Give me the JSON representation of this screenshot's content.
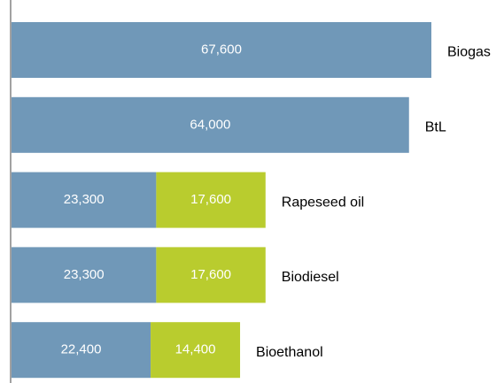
{
  "chart_data": {
    "type": "stacked-barh",
    "categories": [
      "Biogas",
      "BtL",
      "Rapeseed oil",
      "Biodiesel",
      "Bioethanol"
    ],
    "series": [
      {
        "color": "#7098b8",
        "values": [
          67600,
          64000,
          23300,
          23300,
          22400
        ],
        "value_labels": [
          "67,600",
          "64,000",
          "23,300",
          "23,300",
          "22,400"
        ]
      },
      {
        "color": "#b9cc2e",
        "values": [
          null,
          null,
          17600,
          17600,
          14400
        ],
        "value_labels": [
          null,
          null,
          "17,600",
          "17,600",
          "14,400"
        ]
      }
    ]
  }
}
